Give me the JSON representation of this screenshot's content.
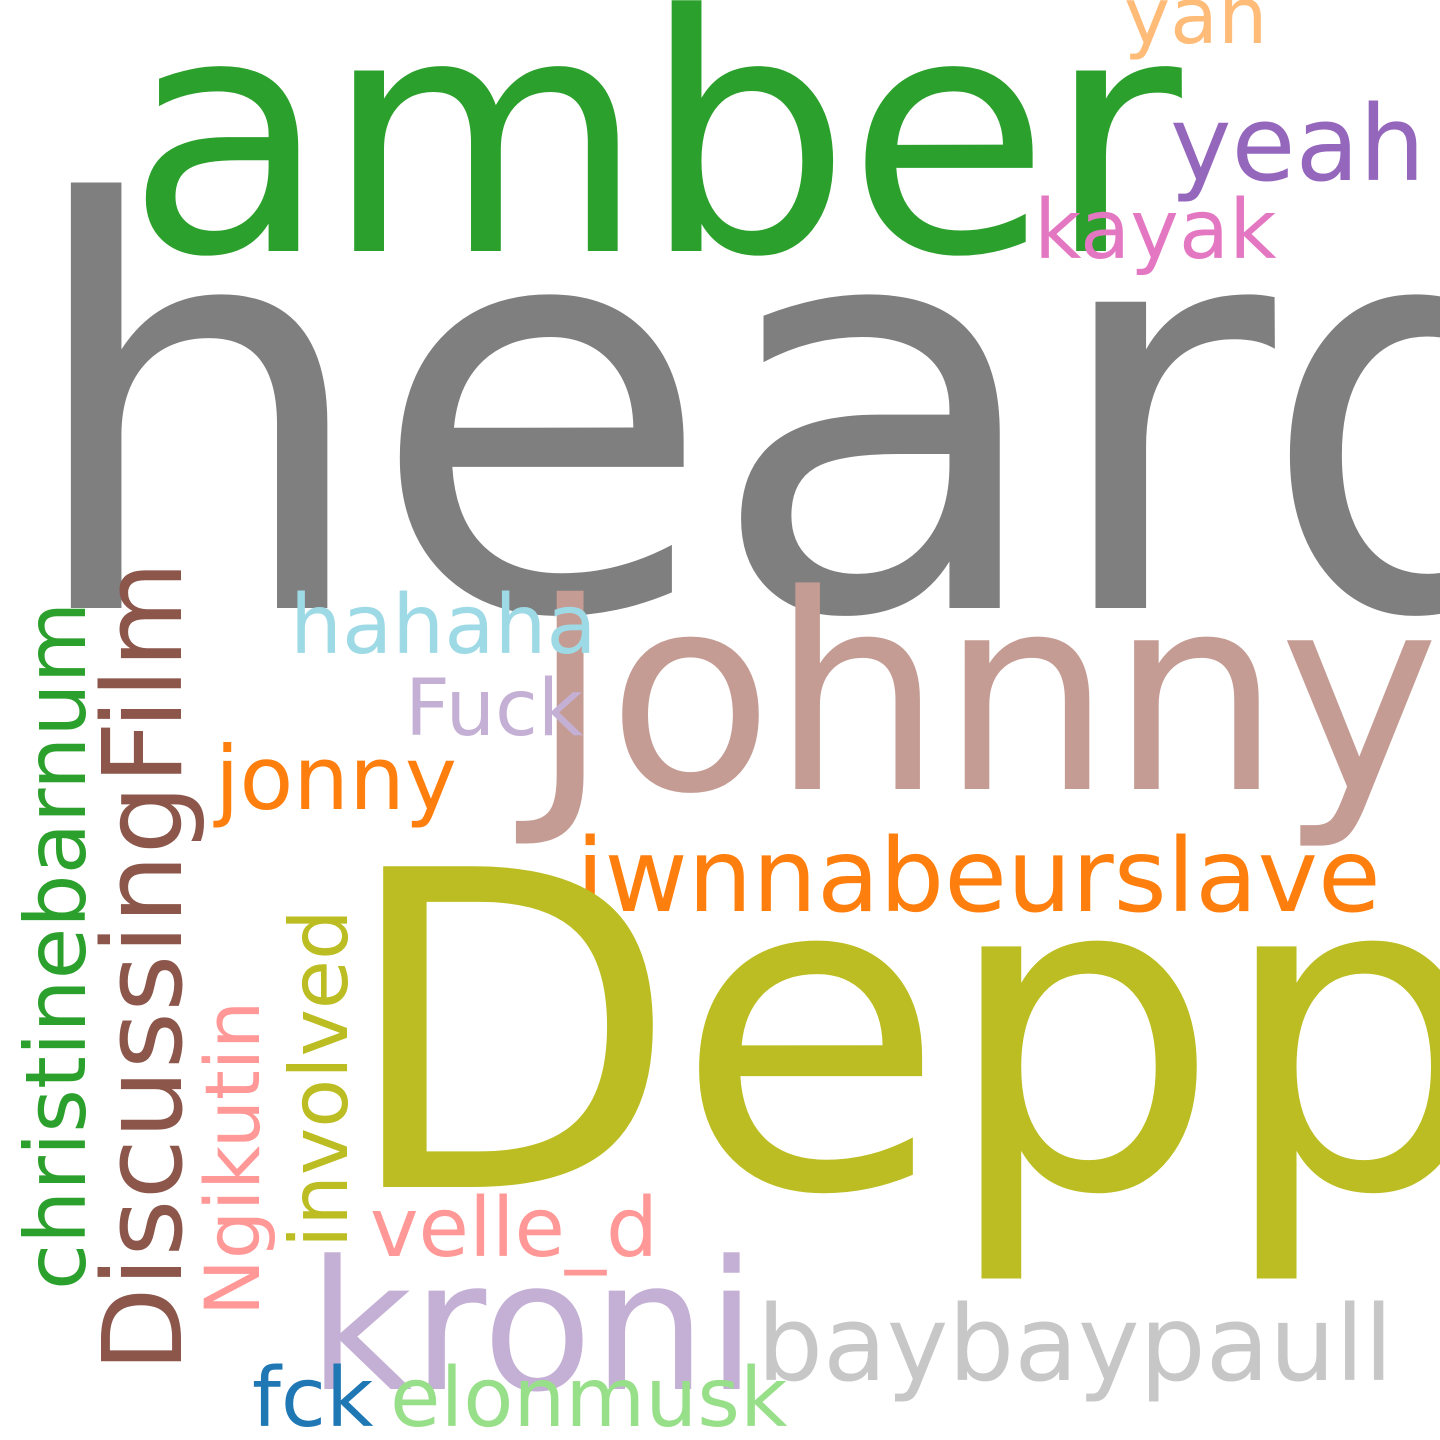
{
  "words": {
    "heard": {
      "text": "heard",
      "color": "#7f7f7f"
    },
    "amber": {
      "text": "amber",
      "color": "#2ca02c"
    },
    "yan": {
      "text": "yan",
      "color": "#ffbb78"
    },
    "yeah": {
      "text": "yeah",
      "color": "#9467bd"
    },
    "kayak": {
      "text": "kayak",
      "color": "#e377c2"
    },
    "johnny": {
      "text": "Johnny",
      "color": "#c49c94"
    },
    "hahaha": {
      "text": "hahaha",
      "color": "#9edae5"
    },
    "fuck": {
      "text": "Fuck",
      "color": "#c5b0d5"
    },
    "jonny": {
      "text": "jonny",
      "color": "#ff7f0e"
    },
    "iwnnabeurslave": {
      "text": "iwnnabeurslave",
      "color": "#ff7f0e"
    },
    "depp": {
      "text": "Depp",
      "color": "#bcbd22"
    },
    "velle_d": {
      "text": "velle_d",
      "color": "#ff9896"
    },
    "kroni": {
      "text": "kroni",
      "color": "#c5b0d5"
    },
    "baybaypaull": {
      "text": "baybaypaull",
      "color": "#c7c7c7"
    },
    "fck": {
      "text": "fck",
      "color": "#1f77b4"
    },
    "elonmusk": {
      "text": "elonmusk",
      "color": "#98df8a"
    },
    "discussingfilm": {
      "text": "DiscussingFilm",
      "color": "#8c564b"
    },
    "christinebarnum": {
      "text": "christinebarnum",
      "color": "#2ca02c"
    },
    "ngikutin": {
      "text": "Ngikutin",
      "color": "#ff9896"
    },
    "involved": {
      "text": "involved",
      "color": "#bcbd22"
    }
  }
}
